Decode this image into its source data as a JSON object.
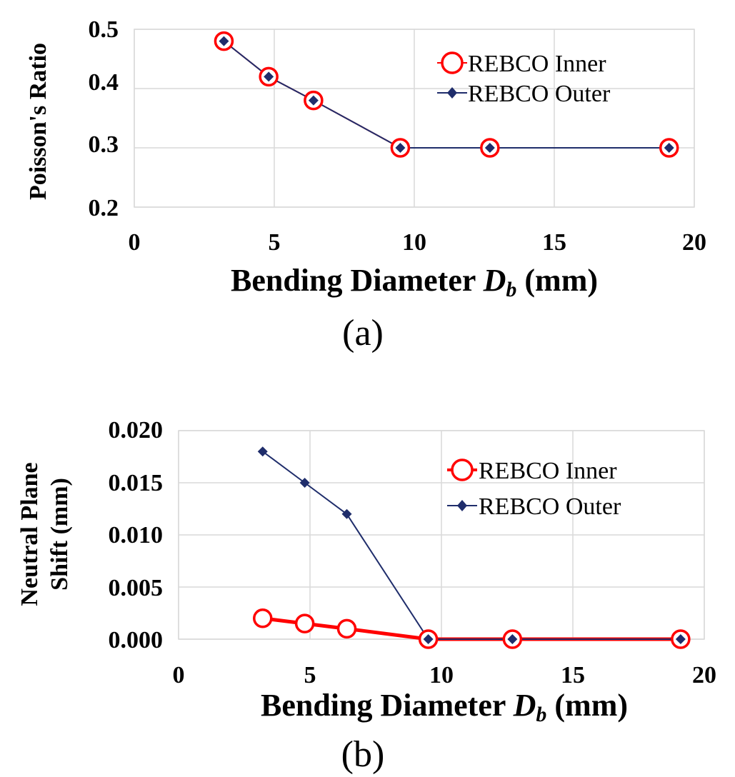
{
  "chart_data": [
    {
      "type": "line",
      "panel_label": "(a)",
      "x_label_main": "Bending Diameter ",
      "x_label_var": "D",
      "x_label_sub": "b",
      "x_label_unit": "  (mm)",
      "ylabel": "Poisson's Ratio",
      "xlim": [
        0,
        20
      ],
      "ylim": [
        0.2,
        0.5
      ],
      "x_ticks": [
        "0",
        "5",
        "10",
        "15",
        "20"
      ],
      "y_ticks": [
        "0.5",
        "0.4",
        "0.3",
        "0.2"
      ],
      "grid": true,
      "legend_position": "top-right",
      "series": [
        {
          "name": "REBCO Inner",
          "color": "#ff0000",
          "marker": "circle",
          "x": [
            3.2,
            4.8,
            6.4,
            9.5,
            12.7,
            19.1
          ],
          "y": [
            0.48,
            0.42,
            0.38,
            0.3,
            0.3,
            0.3
          ]
        },
        {
          "name": "REBCO Outer",
          "color": "#1f2d6b",
          "marker": "diamond",
          "x": [
            3.2,
            4.8,
            6.4,
            9.5,
            12.7,
            19.1
          ],
          "y": [
            0.48,
            0.42,
            0.38,
            0.3,
            0.3,
            0.3
          ]
        }
      ]
    },
    {
      "type": "line",
      "panel_label": "(b)",
      "x_label_main": "Bending Diameter ",
      "x_label_var": "D",
      "x_label_sub": "b",
      "x_label_unit": "  (mm)",
      "ylabel_line1": "Neutral Plane",
      "ylabel_line2": "Shift  (mm)",
      "xlim": [
        0,
        20
      ],
      "ylim": [
        0,
        0.02
      ],
      "x_ticks": [
        "0",
        "5",
        "10",
        "15",
        "20"
      ],
      "y_ticks": [
        "0.020",
        "0.015",
        "0.010",
        "0.005",
        "0.000"
      ],
      "grid": true,
      "legend_position": "top-right",
      "series": [
        {
          "name": "REBCO Inner",
          "color": "#ff0000",
          "marker": "circle",
          "x": [
            3.2,
            4.8,
            6.4,
            9.5,
            12.7,
            19.1
          ],
          "y": [
            0.002,
            0.0015,
            0.001,
            0.0,
            0.0,
            0.0
          ]
        },
        {
          "name": "REBCO Outer",
          "color": "#1f2d6b",
          "marker": "diamond",
          "x": [
            3.2,
            4.8,
            6.4,
            9.5,
            12.7,
            19.1
          ],
          "y": [
            0.018,
            0.015,
            0.012,
            0.0,
            0.0,
            0.0
          ]
        }
      ]
    }
  ]
}
